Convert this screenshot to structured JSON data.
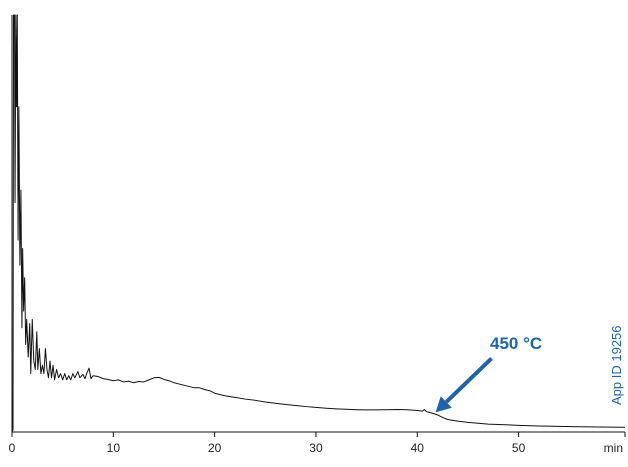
{
  "chart_data": {
    "type": "line",
    "title": "",
    "xlabel": "",
    "ylabel": "",
    "x_unit": "min",
    "xlim": [
      0,
      60.5
    ],
    "ylim": [
      0,
      100
    ],
    "x_ticks": [
      0,
      10,
      20,
      30,
      40,
      50
    ],
    "grid": false,
    "legend": "none",
    "line_color": "#111111",
    "accent_color": "#1f63aa",
    "annotation": {
      "text": "450 °C",
      "x": 41.8,
      "y": 4.7
    },
    "watermark": "App ID 19256",
    "series": [
      {
        "points": [
          [
            0.0,
            0.0
          ],
          [
            0.1,
            0.5
          ],
          [
            0.15,
            100
          ],
          [
            0.25,
            100
          ],
          [
            0.3,
            55
          ],
          [
            0.38,
            100
          ],
          [
            0.45,
            78
          ],
          [
            0.52,
            100
          ],
          [
            0.6,
            46
          ],
          [
            0.68,
            78
          ],
          [
            0.78,
            40
          ],
          [
            0.88,
            58
          ],
          [
            0.98,
            25
          ],
          [
            1.05,
            44
          ],
          [
            1.15,
            29
          ],
          [
            1.25,
            37
          ],
          [
            1.35,
            21
          ],
          [
            1.45,
            27
          ],
          [
            1.6,
            18
          ],
          [
            1.75,
            26
          ],
          [
            1.85,
            14
          ],
          [
            2.0,
            27
          ],
          [
            2.15,
            17
          ],
          [
            2.3,
            15
          ],
          [
            2.45,
            24
          ],
          [
            2.55,
            15
          ],
          [
            2.7,
            20
          ],
          [
            2.85,
            14
          ],
          [
            3.0,
            16
          ],
          [
            3.15,
            14
          ],
          [
            3.3,
            20
          ],
          [
            3.45,
            15
          ],
          [
            3.6,
            13
          ],
          [
            3.75,
            17
          ],
          [
            3.9,
            13
          ],
          [
            4.05,
            16
          ],
          [
            4.2,
            12.5
          ],
          [
            4.4,
            15
          ],
          [
            4.6,
            13
          ],
          [
            4.8,
            14
          ],
          [
            5.0,
            12.5
          ],
          [
            5.2,
            14
          ],
          [
            5.4,
            12.5
          ],
          [
            5.6,
            13.5
          ],
          [
            5.8,
            12.5
          ],
          [
            6.0,
            14
          ],
          [
            6.2,
            13
          ],
          [
            6.5,
            14.5
          ],
          [
            6.7,
            13
          ],
          [
            7.0,
            13.8
          ],
          [
            7.2,
            12.8
          ],
          [
            7.4,
            14.2
          ],
          [
            7.6,
            15.3
          ],
          [
            7.8,
            12.8
          ],
          [
            8.0,
            13.5
          ],
          [
            8.5,
            13.3
          ],
          [
            9.0,
            12.8
          ],
          [
            9.5,
            12.6
          ],
          [
            10.0,
            12.3
          ],
          [
            10.5,
            12.5
          ],
          [
            11.0,
            12.0
          ],
          [
            11.5,
            12.2
          ],
          [
            12.0,
            11.8
          ],
          [
            12.5,
            12.1
          ],
          [
            13.0,
            12.0
          ],
          [
            13.5,
            12.5
          ],
          [
            14.0,
            13.0
          ],
          [
            14.5,
            13.1
          ],
          [
            15.0,
            12.6
          ],
          [
            15.5,
            12.3
          ],
          [
            16.0,
            11.8
          ],
          [
            16.5,
            11.5
          ],
          [
            17.0,
            11.2
          ],
          [
            17.5,
            10.9
          ],
          [
            18.0,
            10.6
          ],
          [
            18.5,
            10.6
          ],
          [
            19.0,
            10.2
          ],
          [
            19.5,
            9.9
          ],
          [
            20.0,
            9.3
          ],
          [
            20.5,
            9.0
          ],
          [
            21.0,
            8.7
          ],
          [
            22.0,
            8.3
          ],
          [
            23.0,
            7.9
          ],
          [
            24.0,
            7.6
          ],
          [
            25.0,
            7.2
          ],
          [
            26.0,
            6.9
          ],
          [
            27.0,
            6.6
          ],
          [
            28.0,
            6.35
          ],
          [
            29.0,
            6.1
          ],
          [
            30.0,
            5.9
          ],
          [
            31.0,
            5.7
          ],
          [
            32.0,
            5.55
          ],
          [
            33.0,
            5.45
          ],
          [
            34.0,
            5.35
          ],
          [
            35.0,
            5.3
          ],
          [
            36.0,
            5.3
          ],
          [
            37.0,
            5.35
          ],
          [
            38.0,
            5.4
          ],
          [
            39.0,
            5.35
          ],
          [
            40.0,
            5.15
          ],
          [
            40.5,
            5.0
          ],
          [
            40.7,
            5.4
          ],
          [
            40.9,
            4.9
          ],
          [
            41.5,
            4.5
          ],
          [
            42.0,
            4.1
          ],
          [
            42.5,
            3.5
          ],
          [
            43.0,
            3.0
          ],
          [
            44.0,
            2.6
          ],
          [
            45.0,
            2.3
          ],
          [
            46.0,
            2.1
          ],
          [
            47.0,
            1.9
          ],
          [
            48.0,
            1.8
          ],
          [
            49.0,
            1.7
          ],
          [
            50.0,
            1.6
          ],
          [
            52.0,
            1.45
          ],
          [
            54.0,
            1.35
          ],
          [
            56.0,
            1.25
          ],
          [
            58.0,
            1.2
          ],
          [
            60.0,
            1.15
          ],
          [
            60.5,
            1.15
          ]
        ]
      }
    ]
  }
}
